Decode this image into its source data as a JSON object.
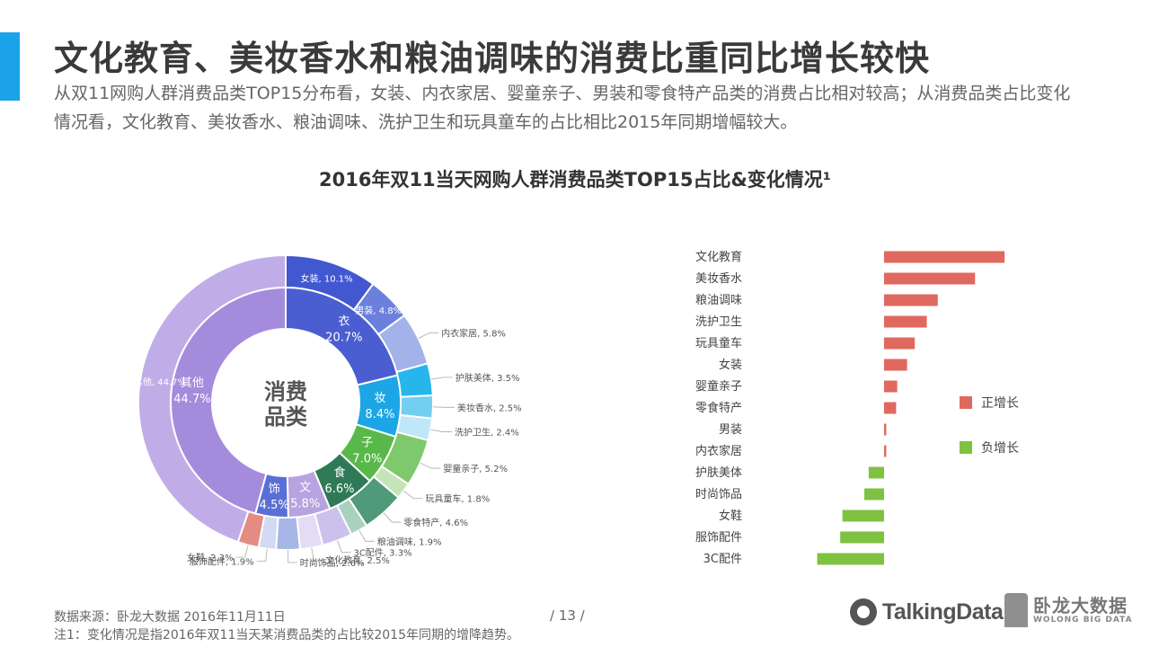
{
  "header": {
    "title": "文化教育、美妆香水和粮油调味的消费比重同比增长较快",
    "subtitle": "从双11网购人群消费品类TOP15分布看，女装、内衣家居、婴童亲子、男装和零食特产品类的消费占比相对较高；从消费品类占比变化情况看，文化教育、美妆香水、粮油调味、洗护卫生和玩具童车的占比相比2015年同期增幅较大。"
  },
  "chart_title": "2016年双11当天网购人群消费品类TOP15占比&变化情况¹",
  "chart_data": [
    {
      "type": "pie",
      "variant": "nested-donut",
      "center_label": [
        "消费",
        "品类"
      ],
      "inner": [
        {
          "label": "衣",
          "value": 20.7,
          "value_text": "20.7%",
          "color": "#4a5ed1"
        },
        {
          "label": "妆",
          "value": 8.4,
          "value_text": "8.4%",
          "color": "#1ca6e6"
        },
        {
          "label": "子",
          "value": 7.0,
          "value_text": "7.0%",
          "color": "#58b84a"
        },
        {
          "label": "食",
          "value": 6.6,
          "value_text": "6.6%",
          "color": "#2f7a56"
        },
        {
          "label": "文",
          "value": 5.8,
          "value_text": "5.8%",
          "color": "#b7a3e0"
        },
        {
          "label": "饰",
          "value": 4.5,
          "value_text": "4.5%",
          "color": "#5a6fd6"
        },
        {
          "label": "其他",
          "value": 44.7,
          "value_text": "44.7%",
          "color": "#a58bdc"
        }
      ],
      "outer": [
        {
          "label": "女装, 10.1%",
          "value": 10.1,
          "color": "#4258d0"
        },
        {
          "label": "男装, 4.8%",
          "value": 4.8,
          "color": "#6a80dc"
        },
        {
          "label": "内衣家居, 5.8%",
          "value": 5.8,
          "color": "#a3b2e8"
        },
        {
          "label": "护肤美体, 3.5%",
          "value": 3.5,
          "color": "#27b6ec"
        },
        {
          "label": "美妆香水, 2.5%",
          "value": 2.5,
          "color": "#72cff2"
        },
        {
          "label": "洗护卫生, 2.4%",
          "value": 2.4,
          "color": "#bfe7f7"
        },
        {
          "label": "婴童亲子, 5.2%",
          "value": 5.2,
          "color": "#7dc96b"
        },
        {
          "label": "玩具童车, 1.8%",
          "value": 1.8,
          "color": "#c5e5b8"
        },
        {
          "label": "零食特产, 4.6%",
          "value": 4.6,
          "color": "#4f9a78"
        },
        {
          "label": "粮油调味, 1.9%",
          "value": 1.9,
          "color": "#a9d1be"
        },
        {
          "label": "3C配件, 3.3%",
          "value": 3.3,
          "color": "#ccc0ec"
        },
        {
          "label": "文化教育, 2.5%",
          "value": 2.5,
          "color": "#e3dcf5"
        },
        {
          "label": "时尚饰品, 2.6%",
          "value": 2.6,
          "color": "#a7b6e6"
        },
        {
          "label": "服饰配件, 1.9%",
          "value": 1.9,
          "color": "#d3daf3"
        },
        {
          "label": "女鞋, 2.3%",
          "value": 2.3,
          "color": "#e48b84"
        },
        {
          "label": "其他, 44.7%",
          "value": 44.7,
          "color": "#c0ade8"
        }
      ]
    },
    {
      "type": "bar",
      "orientation": "horizontal",
      "categories": [
        "文化教育",
        "美妆香水",
        "粮油调味",
        "洗护卫生",
        "玩具童车",
        "女装",
        "婴童亲子",
        "零食特产",
        "男装",
        "内衣家居",
        "护肤美体",
        "时尚饰品",
        "女鞋",
        "服饰配件",
        "3C配件"
      ],
      "values": [
        1.1,
        0.83,
        0.49,
        0.39,
        0.28,
        0.21,
        0.12,
        0.11,
        0.02,
        0.02,
        -0.14,
        -0.18,
        -0.38,
        -0.4,
        -0.61
      ],
      "legend": [
        {
          "name": "正增长",
          "color": "#e0695f"
        },
        {
          "name": "负增长",
          "color": "#7fc241"
        }
      ],
      "legend_placement": "right"
    }
  ],
  "footer": {
    "source": "数据来源：卧龙大数据 2016年11月11日",
    "note": "注1：变化情况是指2016年双11当天某消费品类的占比较2015年同期的增降趋势。",
    "page": "/ 13 /"
  },
  "logos": {
    "talkingdata": "TalkingData",
    "wolong_cn": "卧龙大数据",
    "wolong_en": "WOLONG BIG DATA"
  }
}
